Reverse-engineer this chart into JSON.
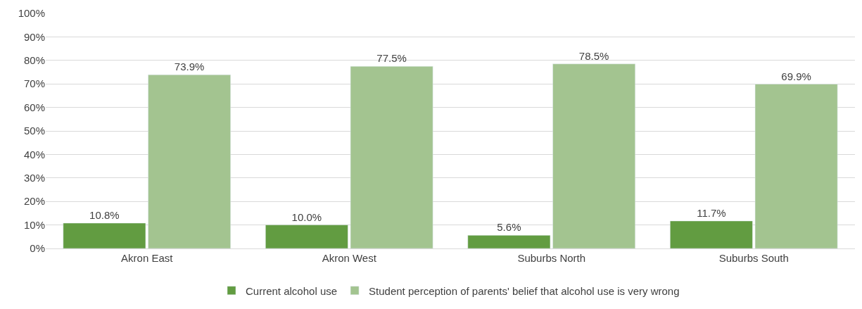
{
  "chart_data": {
    "type": "bar",
    "categories": [
      "Akron East",
      "Akron West",
      "Suburbs North",
      "Suburbs South"
    ],
    "series": [
      {
        "name": "Current alcohol use",
        "color": "#629c41",
        "values": [
          10.8,
          10.0,
          5.6,
          11.7
        ],
        "value_labels": [
          "10.8%",
          "10.0%",
          "5.6%",
          "11.7%"
        ]
      },
      {
        "name": "Student perception of parents' belief that alcohol use is very wrong",
        "color": "#a3c490",
        "values": [
          73.9,
          77.5,
          78.5,
          69.9
        ],
        "value_labels": [
          "73.9%",
          "77.5%",
          "78.5%",
          "69.9%"
        ]
      }
    ],
    "ylim": [
      0,
      100
    ],
    "yticks": [
      {
        "value": 0,
        "label": "0%"
      },
      {
        "value": 10,
        "label": "10%"
      },
      {
        "value": 20,
        "label": "20%"
      },
      {
        "value": 30,
        "label": "30%"
      },
      {
        "value": 40,
        "label": "40%"
      },
      {
        "value": 50,
        "label": "50%"
      },
      {
        "value": 60,
        "label": "60%"
      },
      {
        "value": 70,
        "label": "70%"
      },
      {
        "value": 80,
        "label": "80%"
      },
      {
        "value": 90,
        "label": "90%"
      },
      {
        "value": 100,
        "label": "100%"
      }
    ],
    "grid": "y",
    "legend": "bottom"
  }
}
